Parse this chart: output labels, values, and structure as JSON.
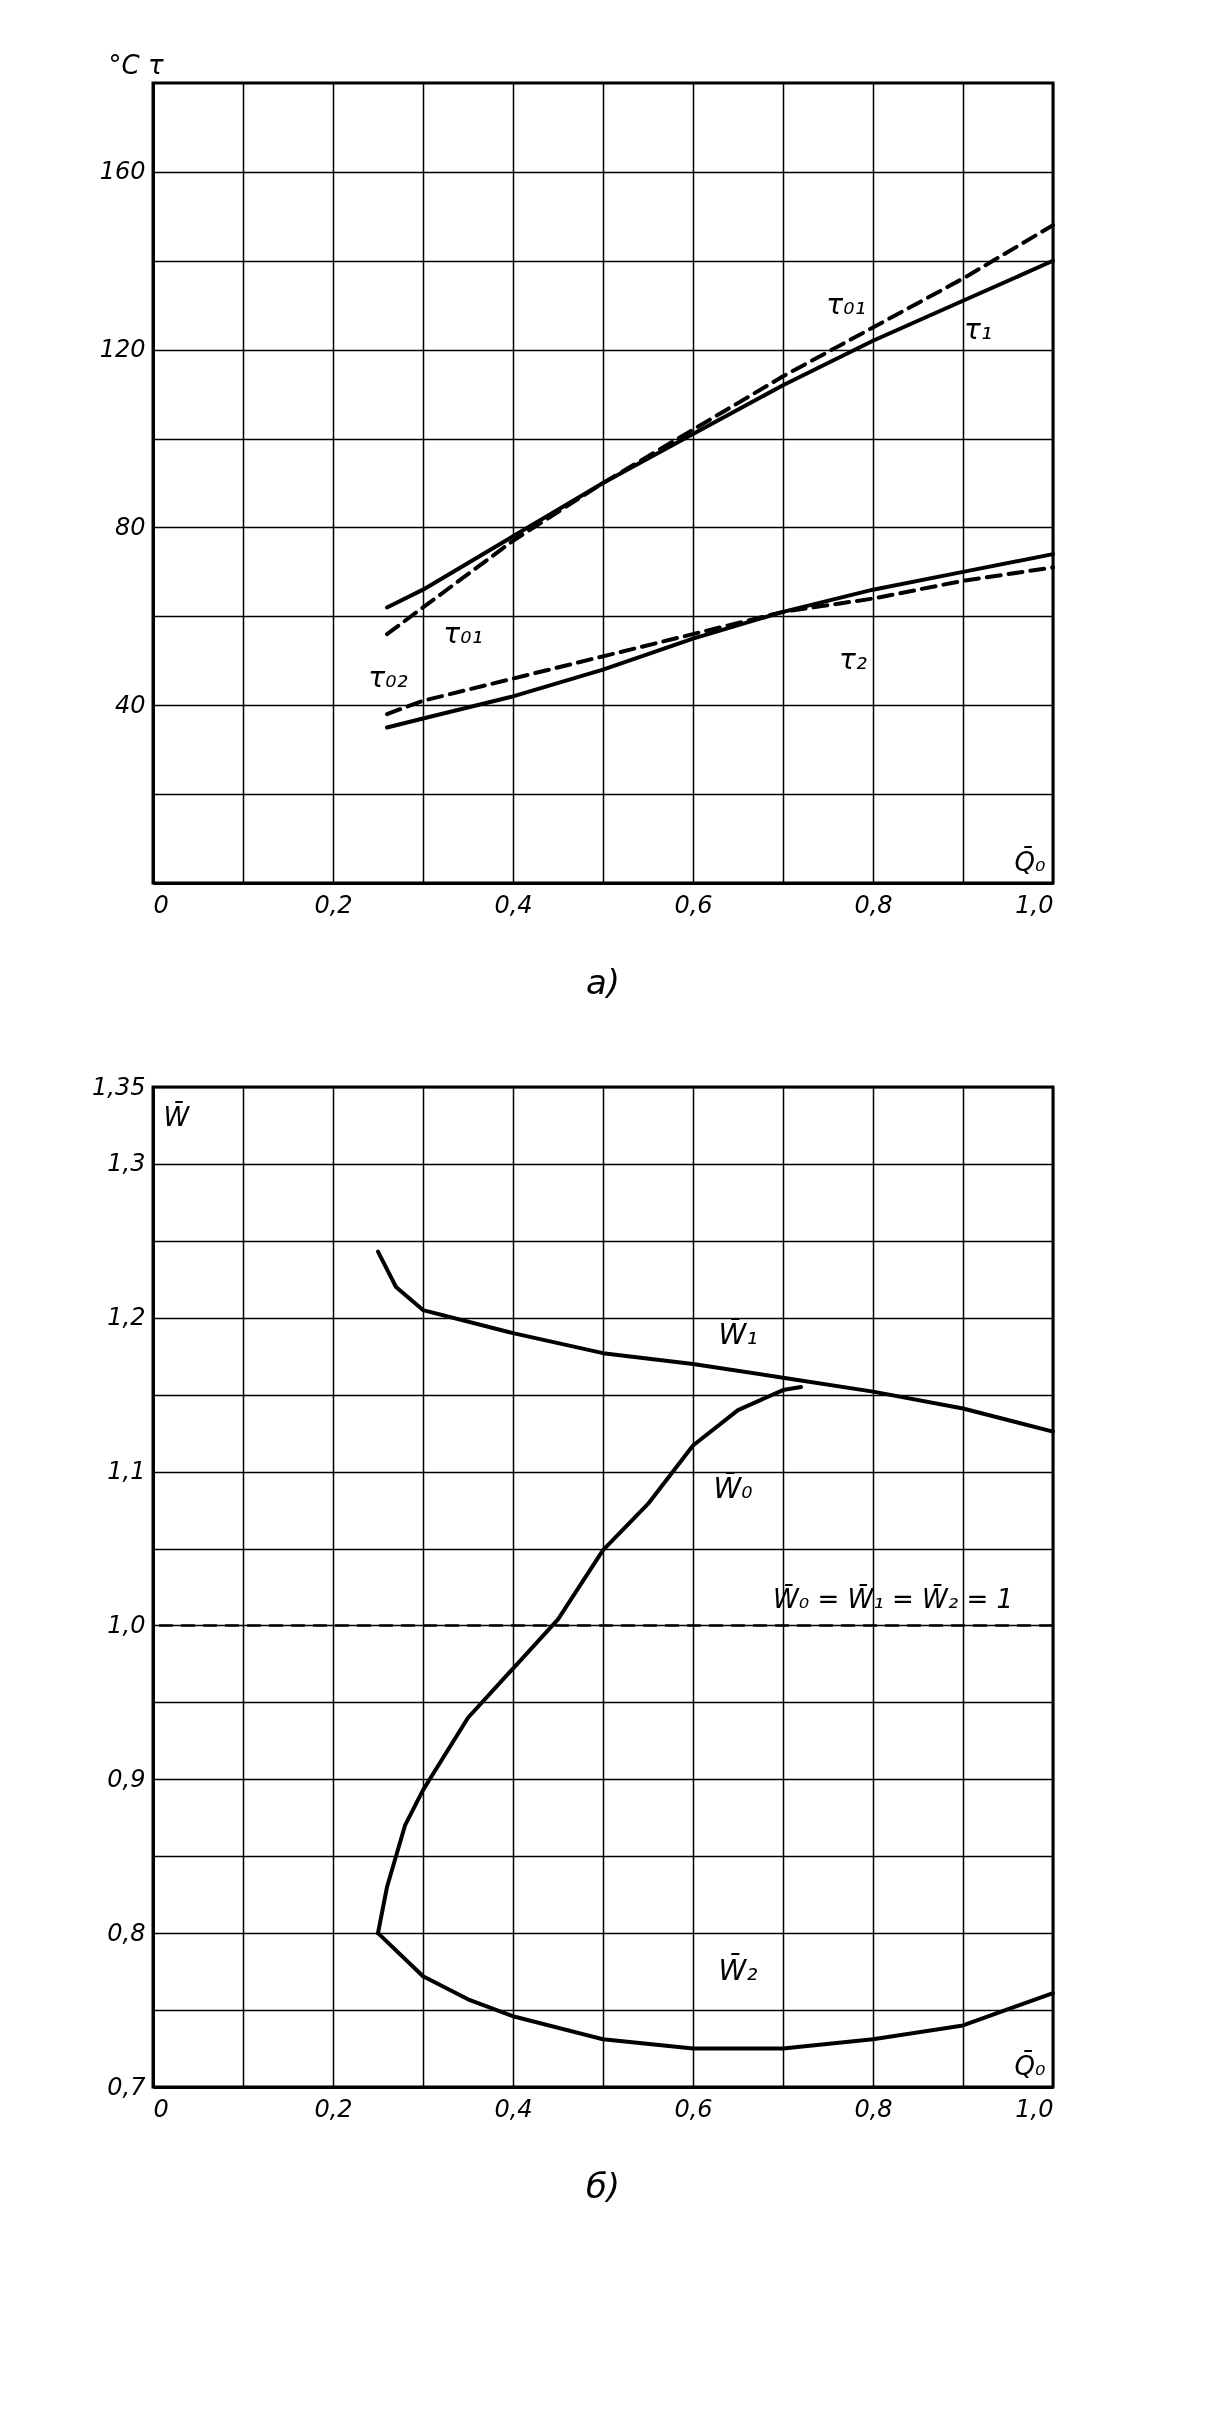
{
  "chart_data": [
    {
      "type": "line",
      "title": "а)",
      "xlabel": "Q̄₀",
      "ylabel": "°C τ",
      "xlim": [
        0,
        1.0
      ],
      "ylim": [
        0,
        180
      ],
      "xticks": [
        0,
        {
          "value": 0.1,
          "label": null
        },
        {
          "value": 0.2,
          "label": "0,2"
        },
        {
          "value": 0.3,
          "label": null
        },
        {
          "value": 0.4,
          "label": "0,4"
        },
        {
          "value": 0.5,
          "label": null
        },
        {
          "value": 0.6,
          "label": "0,6"
        },
        {
          "value": 0.7,
          "label": null
        },
        {
          "value": 0.8,
          "label": "0,8"
        },
        {
          "value": 0.9,
          "label": null
        },
        {
          "value": 1.0,
          "label": "1,0"
        }
      ],
      "yticks": [
        {
          "value": 0,
          "label": null
        },
        {
          "value": 20,
          "label": null
        },
        40,
        {
          "value": 60,
          "label": null
        },
        80,
        {
          "value": 100,
          "label": null
        },
        120,
        {
          "value": 140,
          "label": null
        },
        160
      ],
      "grid": true,
      "series": [
        {
          "name": "τ₀₁",
          "color": "#000000",
          "line_style": "dashed",
          "x": [
            0.26,
            0.3,
            0.4,
            0.5,
            0.6,
            0.7,
            0.8,
            0.9,
            1.0
          ],
          "values": [
            56,
            62,
            77,
            90,
            102,
            114,
            125,
            136,
            148
          ]
        },
        {
          "name": "τ₁",
          "color": "#000000",
          "line_style": "solid",
          "x": [
            0.26,
            0.3,
            0.4,
            0.5,
            0.6,
            0.7,
            0.8,
            0.9,
            1.0
          ],
          "values": [
            62,
            66,
            78,
            90,
            101,
            112,
            122,
            131,
            140
          ]
        },
        {
          "name": "τ₂",
          "color": "#000000",
          "line_style": "solid",
          "x": [
            0.26,
            0.3,
            0.4,
            0.5,
            0.6,
            0.7,
            0.8,
            0.9,
            1.0
          ],
          "values": [
            35,
            37,
            42,
            48,
            55,
            61,
            66,
            70,
            74
          ]
        },
        {
          "name": "τ₀₂",
          "color": "#000000",
          "line_style": "dashed",
          "x": [
            0.26,
            0.3,
            0.4,
            0.5,
            0.6,
            0.7,
            0.8,
            0.9,
            1.0
          ],
          "values": [
            38,
            41,
            46,
            51,
            56,
            61,
            64,
            68,
            71
          ]
        }
      ],
      "annotations": [
        {
          "text": "τ₀₁",
          "x": 0.3,
          "y": 62
        }
      ]
    },
    {
      "type": "line",
      "title": "б)",
      "xlabel": "Q̄₀",
      "ylabel": "W̄",
      "xlim": [
        0,
        1.0
      ],
      "ylim": [
        0.7,
        1.35
      ],
      "xticks": [
        0,
        {
          "value": 0.1,
          "label": null
        },
        {
          "value": 0.2,
          "label": "0,2"
        },
        {
          "value": 0.3,
          "label": null
        },
        {
          "value": 0.4,
          "label": "0,4"
        },
        {
          "value": 0.5,
          "label": null
        },
        {
          "value": 0.6,
          "label": "0,6"
        },
        {
          "value": 0.7,
          "label": null
        },
        {
          "value": 0.8,
          "label": "0,8"
        },
        {
          "value": 0.9,
          "label": null
        },
        {
          "value": 1.0,
          "label": "1,0"
        }
      ],
      "yticks": [
        {
          "value": 0.7,
          "label": "0,7"
        },
        {
          "value": 0.75,
          "label": null
        },
        {
          "value": 0.8,
          "label": "0,8"
        },
        {
          "value": 0.85,
          "label": null
        },
        {
          "value": 0.9,
          "label": "0,9"
        },
        {
          "value": 0.95,
          "label": null
        },
        {
          "value": 1.0,
          "label": "1,0"
        },
        {
          "value": 1.05,
          "label": null
        },
        {
          "value": 1.1,
          "label": "1,1"
        },
        {
          "value": 1.15,
          "label": null
        },
        {
          "value": 1.2,
          "label": "1,2"
        },
        {
          "value": 1.25,
          "label": null
        },
        {
          "value": 1.3,
          "label": "1,3"
        },
        {
          "value": 1.35,
          "label": "1,35"
        }
      ],
      "grid": true,
      "series": [
        {
          "name": "W̄₀",
          "color": "#000000",
          "line_style": "solid",
          "x": [
            0.25,
            0.26,
            0.28,
            0.3,
            0.35,
            0.4,
            0.45,
            0.5,
            0.55,
            0.6,
            0.65,
            0.7,
            0.72
          ],
          "values": [
            0.8,
            0.83,
            0.87,
            0.893,
            0.94,
            0.972,
            1.004,
            1.049,
            1.079,
            1.117,
            1.14,
            1.153,
            1.155
          ]
        },
        {
          "name": "W̄₁",
          "color": "#000000",
          "line_style": "solid",
          "x": [
            0.25,
            0.27,
            0.3,
            0.4,
            0.5,
            0.6,
            0.7,
            0.8,
            0.9,
            1.0
          ],
          "values": [
            1.243,
            1.22,
            1.205,
            1.19,
            1.177,
            1.17,
            1.161,
            1.152,
            1.141,
            1.126
          ]
        },
        {
          "name": "W̄₂",
          "color": "#000000",
          "line_style": "solid",
          "x": [
            0.25,
            0.3,
            0.35,
            0.4,
            0.5,
            0.6,
            0.7,
            0.8,
            0.9,
            1.0
          ],
          "values": [
            0.8,
            0.772,
            0.757,
            0.746,
            0.731,
            0.725,
            0.725,
            0.731,
            0.74,
            0.761
          ]
        }
      ],
      "ref_lines": [
        {
          "axis": "y",
          "value": 1.0,
          "label": "W̄₀ = W̄₁ = W̄₂ = 1",
          "color": "#000000",
          "line_style": "dashed"
        }
      ]
    }
  ]
}
